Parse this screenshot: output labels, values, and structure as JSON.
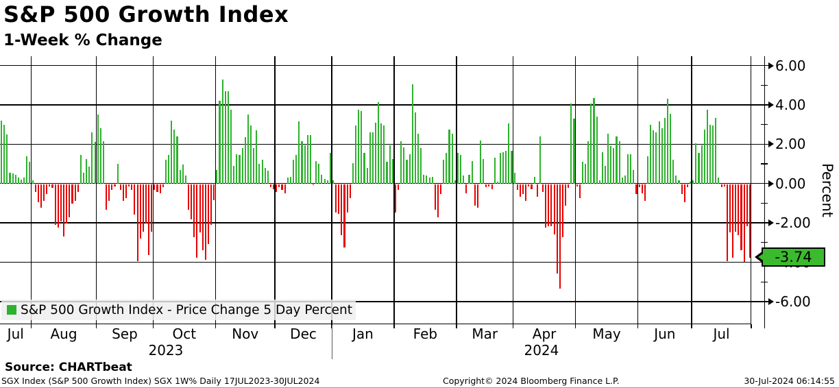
{
  "header": {
    "title": "S&P 500 Growth Index",
    "subtitle": "1-Week % Change"
  },
  "legend": {
    "label": "S&P 500 Growth Index - Price Change 5 Day Percent"
  },
  "y_axis": {
    "label": "Percent",
    "major_tick_labels": [
      "6.00",
      "4.00",
      "2.00",
      "0.00",
      "-2.00",
      "-4.00",
      "-6.00"
    ],
    "last_value_label": "-3.74"
  },
  "x_axis": {
    "years": [
      "2023",
      "2024"
    ]
  },
  "source": {
    "label": "Source: CHARTbeat"
  },
  "footer": {
    "left": "SGX Index (S&P 500 Growth Index) SGX 1W%  Daily 17JUL2023-30JUL2024",
    "center": "Copyright© 2024 Bloomberg Finance L.P.",
    "right": "30-Jul-2024 06:14:55"
  },
  "chart_data": {
    "type": "bar",
    "title": "S&P 500 Growth Index",
    "subtitle": "1-Week % Change",
    "series_name": "S&P 500 Growth Index - Price Change 5 Day Percent",
    "xlabel": "",
    "ylabel": "Percent",
    "ylim": [
      -7.2,
      6.5
    ],
    "y_major_ticks": [
      6,
      4,
      2,
      0,
      -2,
      -4,
      -6
    ],
    "y_minor_ticks": [
      5,
      3,
      1,
      -1,
      -3,
      -5
    ],
    "grid": true,
    "legend_position": "bottom-left",
    "positive_color": "#2db22d",
    "negative_color": "#e60000",
    "last_value": -3.74,
    "months": [
      {
        "label": "Jul",
        "year": "2023",
        "values": [
          3.2,
          3.0,
          2.5,
          0.55,
          0.5,
          0.45,
          0.3,
          0.2,
          0.3,
          1.4,
          1.1
        ]
      },
      {
        "label": "Aug",
        "year": "2023",
        "values": [
          0.15,
          -0.4,
          -0.9,
          -1.2,
          -0.85,
          -0.5,
          -0.1,
          -0.2,
          -2.05,
          -2.2,
          -1.9,
          -2.65,
          -2.0,
          -1.7,
          -1.0,
          -0.85,
          -0.4,
          1.45,
          0.55,
          1.25,
          0.85,
          2.6,
          2.1
        ]
      },
      {
        "label": "Sep",
        "year": "2023",
        "values": [
          3.5,
          2.8,
          2.15,
          -1.3,
          -0.85,
          -0.3,
          -0.1,
          1.0,
          -0.3,
          -0.85,
          -0.7,
          -0.1,
          -0.3,
          -1.55,
          -3.9,
          -2.75,
          -2.4,
          -2.0,
          -3.6,
          -2.4
        ]
      },
      {
        "label": "Oct",
        "year": "2023",
        "values": [
          -0.3,
          -0.4,
          -0.45,
          -0.15,
          1.2,
          1.45,
          3.2,
          2.75,
          2.4,
          0.7,
          0.95,
          0.4,
          -1.3,
          -1.8,
          -2.7,
          -3.75,
          -2.45,
          -3.35,
          -3.85,
          -3.05,
          -2.05,
          -0.8
        ]
      },
      {
        "label": "Nov",
        "year": "2023",
        "values": [
          0.7,
          4.2,
          5.3,
          4.7,
          4.7,
          3.75,
          0.9,
          1.5,
          1.45,
          1.8,
          2.35,
          3.5,
          2.95,
          1.8,
          2.7,
          1.0,
          1.2,
          0.8,
          0.65,
          -0.15,
          -0.25
        ]
      },
      {
        "label": "Dec",
        "year": "2023",
        "values": [
          -0.4,
          -0.15,
          -0.3,
          -0.45,
          0.3,
          0.35,
          1.2,
          1.45,
          3.15,
          2.15,
          1.95,
          2.45,
          2.45,
          -0.05,
          1.15,
          1.0,
          0.45,
          0.25,
          0.15,
          1.55
        ]
      },
      {
        "label": "Jan",
        "year": "2024",
        "values": [
          0.15,
          -1.45,
          -1.5,
          -2.6,
          -3.2,
          -1.45,
          -0.7,
          1.05,
          2.95,
          3.75,
          3.7,
          1.55,
          0.8,
          2.6,
          2.6,
          3.1,
          4.15,
          3.05,
          2.95,
          1.1,
          1.95,
          1.25
        ]
      },
      {
        "label": "Feb",
        "year": "2024",
        "values": [
          -1.45,
          -0.3,
          2.15,
          1.85,
          1.2,
          1.5,
          5.05,
          3.6,
          2.55,
          1.8,
          0.45,
          0.4,
          0.3,
          0.35,
          -1.3,
          -1.7,
          -0.5,
          1.2,
          1.55,
          2.75,
          2.55,
          0.15
        ]
      },
      {
        "label": "Mar",
        "year": "2024",
        "values": [
          1.55,
          1.45,
          0.4,
          -0.45,
          0.45,
          1.15,
          -1.1,
          -1.2,
          2.2,
          1.25,
          -0.15,
          -0.1,
          -0.25,
          1.3,
          0.1,
          1.55,
          1.6,
          1.65,
          3.05,
          1.65
        ]
      },
      {
        "label": "Apr",
        "year": "2024",
        "values": [
          0.55,
          -0.3,
          -0.65,
          -0.5,
          -0.85,
          -0.1,
          -0.25,
          0.35,
          -0.65,
          2.4,
          -0.4,
          -2.2,
          -2.15,
          -2.15,
          -2.55,
          -4.55,
          -5.3,
          -2.7,
          -1.1,
          -0.2,
          4.05,
          3.3
        ]
      },
      {
        "label": "May",
        "year": "2024",
        "values": [
          -0.1,
          -0.7,
          1.1,
          1.0,
          2.15,
          4.05,
          4.35,
          3.4,
          0.15,
          1.6,
          0.9,
          2.55,
          1.9,
          1.8,
          2.4,
          2.15,
          0.3,
          0.4,
          1.5,
          1.5,
          0.7,
          -0.5
        ]
      },
      {
        "label": "Jun",
        "year": "2024",
        "values": [
          -0.15,
          -0.45,
          -0.85,
          1.4,
          3.0,
          2.7,
          2.6,
          3.15,
          2.8,
          3.35,
          4.3,
          3.55,
          1.2,
          0.4,
          0.15,
          -0.5,
          -0.9,
          -0.15,
          0.1
        ]
      },
      {
        "label": "Jul",
        "year": "2024",
        "values": [
          0.15,
          2.05,
          1.55,
          1.95,
          2.75,
          3.75,
          3.0,
          2.95,
          3.35,
          0.3,
          -0.15,
          -0.1,
          -3.9,
          -2.45,
          -3.75,
          -2.4,
          -2.6,
          -3.35,
          -3.95,
          -2.15,
          -3.74
        ]
      }
    ]
  }
}
